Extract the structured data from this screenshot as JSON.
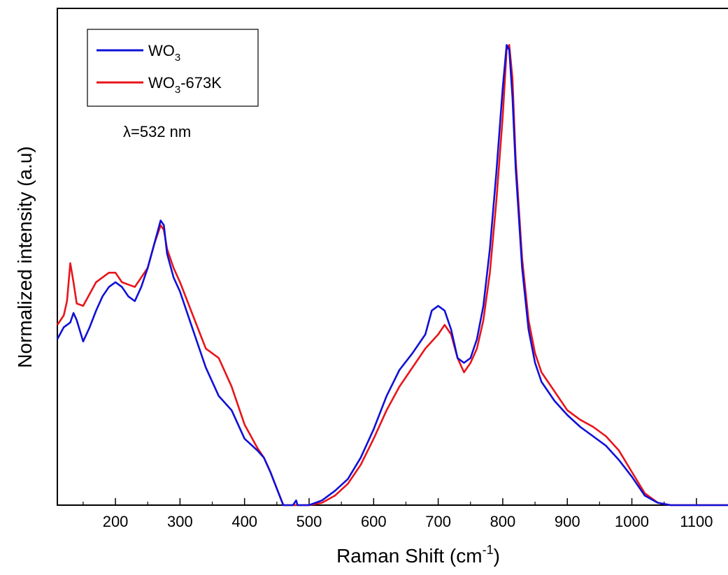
{
  "chart_data": {
    "type": "line",
    "title": "",
    "xlabel_main": "Raman Shift (cm",
    "xlabel_sup": "-1",
    "xlabel_end": ")",
    "ylabel": "Normalized intensity (a.u)",
    "annotation": "λ=532 nm",
    "xlim": [
      110,
      1150
    ],
    "ylim": [
      0,
      1
    ],
    "xticks": [
      200,
      300,
      400,
      500,
      600,
      700,
      800,
      900,
      1000,
      1100
    ],
    "minor_xticks": [
      150,
      250,
      350,
      450,
      550,
      650,
      750,
      850,
      950,
      1050
    ],
    "y_tick_labels": false,
    "grid": false,
    "legend_position": "top-left",
    "series": [
      {
        "name_base": "WO",
        "name_sub": "3",
        "name_suffix": "",
        "color": "#1010d8",
        "x": [
          110,
          120,
          130,
          135,
          140,
          150,
          160,
          170,
          180,
          190,
          200,
          210,
          220,
          230,
          240,
          250,
          260,
          270,
          275,
          280,
          290,
          300,
          320,
          340,
          360,
          380,
          400,
          420,
          430,
          440,
          450,
          460,
          470,
          475,
          480,
          482,
          484,
          500,
          520,
          540,
          560,
          580,
          600,
          620,
          640,
          660,
          680,
          690,
          700,
          710,
          720,
          730,
          740,
          750,
          760,
          770,
          780,
          790,
          800,
          806,
          810,
          815,
          820,
          830,
          840,
          850,
          860,
          880,
          900,
          920,
          940,
          960,
          980,
          1000,
          1020,
          1040,
          1060,
          1080,
          1100,
          1120,
          1150
        ],
        "y": [
          0.35,
          0.375,
          0.385,
          0.405,
          0.39,
          0.345,
          0.375,
          0.41,
          0.44,
          0.46,
          0.47,
          0.46,
          0.44,
          0.43,
          0.46,
          0.5,
          0.55,
          0.6,
          0.59,
          0.53,
          0.48,
          0.45,
          0.37,
          0.29,
          0.23,
          0.2,
          0.14,
          0.115,
          0.1,
          0.07,
          0.035,
          0.0,
          0.0,
          0.0,
          0.01,
          0.0,
          0.0,
          0.0,
          0.01,
          0.03,
          0.055,
          0.1,
          0.16,
          0.23,
          0.285,
          0.32,
          0.36,
          0.41,
          0.42,
          0.41,
          0.37,
          0.31,
          0.3,
          0.31,
          0.35,
          0.42,
          0.54,
          0.7,
          0.88,
          0.97,
          0.96,
          0.86,
          0.71,
          0.5,
          0.37,
          0.3,
          0.26,
          0.22,
          0.19,
          0.165,
          0.145,
          0.125,
          0.095,
          0.06,
          0.02,
          0.005,
          0.0,
          0.0,
          0.0,
          0.0,
          0.0
        ]
      },
      {
        "name_base": "WO",
        "name_sub": "3",
        "name_suffix": "-673K",
        "color": "#e8141a",
        "x": [
          110,
          120,
          125,
          130,
          135,
          140,
          150,
          160,
          170,
          180,
          190,
          200,
          210,
          220,
          230,
          240,
          250,
          260,
          270,
          275,
          280,
          290,
          300,
          320,
          340,
          360,
          380,
          400,
          420,
          430,
          440,
          450,
          460,
          470,
          480,
          500,
          520,
          540,
          560,
          580,
          600,
          620,
          640,
          660,
          680,
          700,
          710,
          720,
          730,
          740,
          750,
          760,
          770,
          780,
          790,
          800,
          806,
          810,
          815,
          820,
          830,
          840,
          850,
          860,
          880,
          900,
          920,
          940,
          960,
          980,
          1000,
          1020,
          1040,
          1060,
          1080,
          1100,
          1120,
          1150
        ],
        "y": [
          0.38,
          0.4,
          0.43,
          0.51,
          0.47,
          0.425,
          0.42,
          0.445,
          0.47,
          0.48,
          0.49,
          0.49,
          0.47,
          0.465,
          0.46,
          0.48,
          0.5,
          0.55,
          0.59,
          0.58,
          0.54,
          0.5,
          0.47,
          0.4,
          0.33,
          0.31,
          0.25,
          0.17,
          0.12,
          0.1,
          0.07,
          0.035,
          0.0,
          0.0,
          0.0,
          0.0,
          0.005,
          0.02,
          0.045,
          0.085,
          0.14,
          0.2,
          0.25,
          0.29,
          0.33,
          0.36,
          0.38,
          0.36,
          0.31,
          0.28,
          0.3,
          0.33,
          0.39,
          0.49,
          0.64,
          0.82,
          0.96,
          0.97,
          0.9,
          0.73,
          0.52,
          0.39,
          0.32,
          0.28,
          0.24,
          0.2,
          0.18,
          0.165,
          0.145,
          0.115,
          0.07,
          0.025,
          0.005,
          0.0,
          0.0,
          0.0,
          0.0,
          0.0
        ]
      }
    ]
  }
}
